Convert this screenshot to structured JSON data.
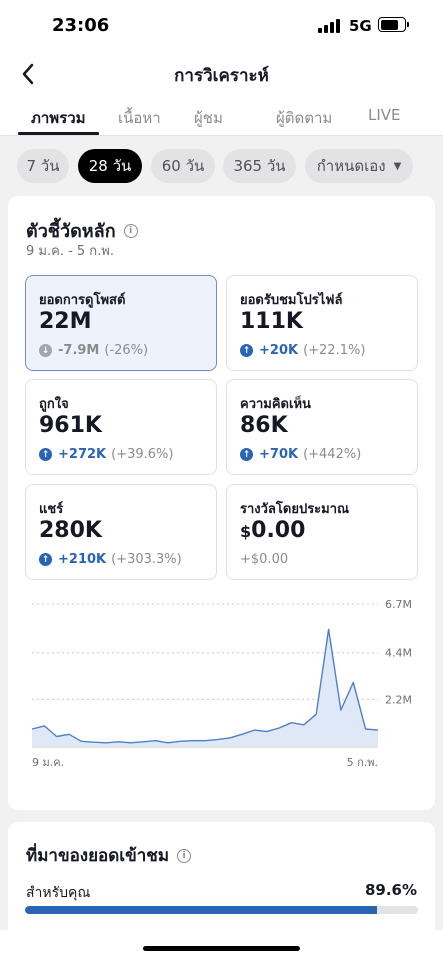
{
  "status_bar": {
    "time": "23:06",
    "network": "5G",
    "battery_level": 0.75
  },
  "header": {
    "title": "การวิเคราะห์",
    "back_icon": "chevron-left-icon"
  },
  "tabs": [
    {
      "label": "ภาพรวม",
      "active": true
    },
    {
      "label": "เนื้อหา",
      "active": false
    },
    {
      "label": "ผู้ชม",
      "active": false
    },
    {
      "label": "ผู้ติดตาม",
      "active": false
    },
    {
      "label": "LIVE",
      "active": false
    }
  ],
  "ranges": [
    {
      "label": "7 วัน",
      "active": false
    },
    {
      "label": "28 วัน",
      "active": true
    },
    {
      "label": "60 วัน",
      "active": false
    },
    {
      "label": "365 วัน",
      "active": false
    },
    {
      "label": "กำหนดเอง",
      "active": false,
      "dropdown": true
    }
  ],
  "key_metrics": {
    "title": "ตัวชี้วัดหลัก",
    "date_range": "9 ม.ค. - 5 ก.พ.",
    "items": [
      {
        "label": "ยอดการดูโพสต์",
        "value": "22M",
        "change_abs": "-7.9M",
        "change_pct": "(-26%)",
        "direction": "down",
        "selected": true
      },
      {
        "label": "ยอดรับชมโปรไฟล์",
        "value": "111K",
        "change_abs": "+20K",
        "change_pct": "(+22.1%)",
        "direction": "up",
        "selected": false
      },
      {
        "label": "ถูกใจ",
        "value": "961K",
        "change_abs": "+272K",
        "change_pct": "(+39.6%)",
        "direction": "up",
        "selected": false
      },
      {
        "label": "ความคิดเห็น",
        "value": "86K",
        "change_abs": "+70K",
        "change_pct": "(+442%)",
        "direction": "up",
        "selected": false
      },
      {
        "label": "แชร์",
        "value": "280K",
        "change_abs": "+210K",
        "change_pct": "(+303.3%)",
        "direction": "up",
        "selected": false
      },
      {
        "label": "รางวัลโดยประมาณ",
        "currency": "$",
        "value": "0.00",
        "change_abs": "+$0.00",
        "change_pct": "",
        "direction": "none",
        "selected": false
      }
    ]
  },
  "chart_data": {
    "type": "area",
    "x_tick_labels": [
      "9 ม.ค.",
      "5 ก.พ."
    ],
    "y_tick_labels": [
      "6.7M",
      "4.4M",
      "2.2M"
    ],
    "y_ticks": [
      6.7,
      4.4,
      2.2
    ],
    "ylim": [
      0,
      6.7
    ],
    "unit": "M",
    "values": [
      0.8,
      0.95,
      0.45,
      0.55,
      0.22,
      0.18,
      0.15,
      0.2,
      0.15,
      0.2,
      0.25,
      0.15,
      0.22,
      0.25,
      0.25,
      0.3,
      0.38,
      0.55,
      0.75,
      0.68,
      0.85,
      1.1,
      1.0,
      1.5,
      5.5,
      1.7,
      3.0,
      0.8,
      0.75
    ],
    "grid": true,
    "color": "#4f7fcc"
  },
  "traffic_source": {
    "title": "ที่มาของยอดเข้าชม",
    "items": [
      {
        "label": "สำหรับคุณ",
        "percent_label": "89.6%",
        "percent": 89.6
      }
    ]
  }
}
